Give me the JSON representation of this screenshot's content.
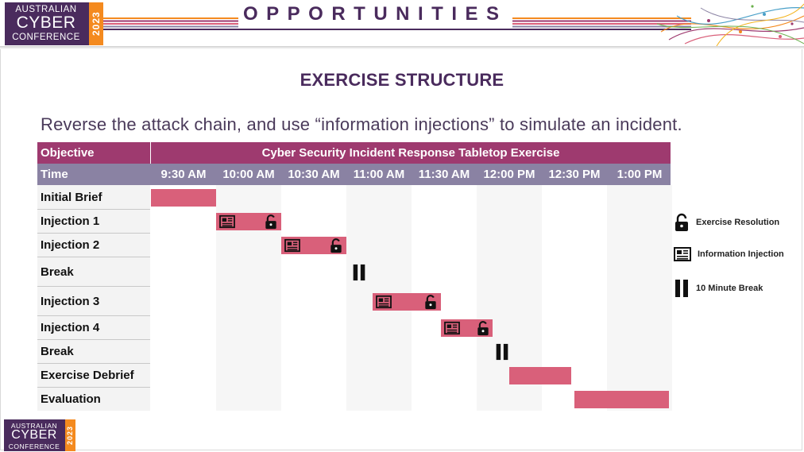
{
  "header": {
    "logo": {
      "line1": "AUSTRALIAN",
      "line2": "CYBER",
      "line3": "CONFERENCE",
      "year": "2023"
    },
    "banner_title": "OPPORTUNITIES",
    "colors": {
      "purple": "#4a2b5d",
      "orange": "#f48a1f"
    }
  },
  "slide": {
    "heading": "EXERCISE STRUCTURE",
    "subtitle": "Reverse the attack chain, and use “information injections” to simulate an incident."
  },
  "table": {
    "objective_label": "Objective",
    "exercise_title": "Cyber Security Incident Response Tabletop Exercise",
    "time_label": "Time",
    "times": [
      "9:30 AM",
      "10:00 AM",
      "10:30 AM",
      "11:00 AM",
      "11:30 AM",
      "12:00 PM",
      "12:30 PM",
      "1:00 PM"
    ],
    "rows": [
      {
        "label": "Initial Brief",
        "start": 0,
        "end": 1,
        "items": []
      },
      {
        "label": "Injection 1",
        "start": 1,
        "end": 2,
        "items": [
          "information-injection",
          "exercise-resolution"
        ]
      },
      {
        "label": "Injection 2",
        "start": 2,
        "end": 3,
        "items": [
          "information-injection",
          "exercise-resolution"
        ]
      },
      {
        "label": "Break",
        "start": 3,
        "end": 3.25,
        "items": [
          "10-minute-break"
        ]
      },
      {
        "label": "Injection 3",
        "start": 3.4,
        "end": 4.45,
        "items": [
          "information-injection",
          "exercise-resolution"
        ]
      },
      {
        "label": "Injection 4",
        "start": 4.45,
        "end": 5.25,
        "items": [
          "information-injection",
          "exercise-resolution"
        ]
      },
      {
        "label": "Break",
        "start": 5.2,
        "end": 5.45,
        "items": [
          "10-minute-break"
        ]
      },
      {
        "label": "Exercise Debrief",
        "start": 5.5,
        "end": 6.45,
        "items": []
      },
      {
        "label": "Evaluation",
        "start": 6.5,
        "end": 7.95,
        "items": []
      }
    ],
    "bar_color": "#d9607a",
    "header_color": "#9e3a6f",
    "time_row_color": "#8a82a3"
  },
  "legend": [
    {
      "icon": "lock-icon",
      "label": "Exercise Resolution"
    },
    {
      "icon": "newspaper-icon",
      "label": "Information Injection"
    },
    {
      "icon": "pause-icon",
      "label": "10 Minute Break"
    }
  ],
  "footer": {
    "logo": {
      "line1": "AUSTRALIAN",
      "line2": "CYBER",
      "line3": "CONFERENCE",
      "year": "2023"
    }
  }
}
